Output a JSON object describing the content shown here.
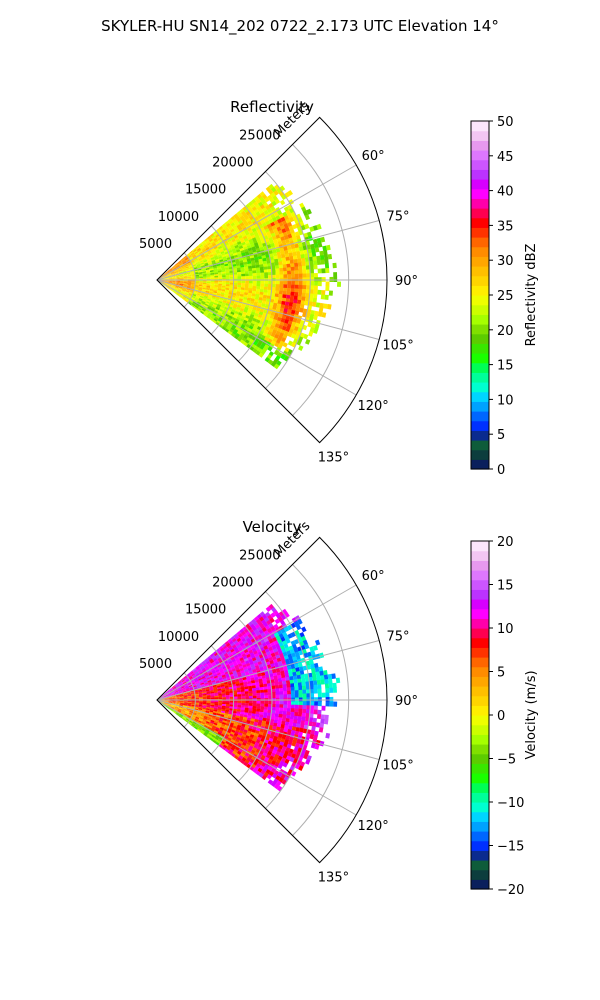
{
  "figure": {
    "title": "SKYLER-HU  SN14_202  0722_2.173 UTC Elevation 14°"
  },
  "chart_data": [
    {
      "type": "heatmap",
      "subtype": "polar-sector",
      "title": "Reflectivity",
      "radial_label": "Meters",
      "radial_ticks": [
        5000,
        10000,
        15000,
        20000,
        25000
      ],
      "radial_tick_labels": [
        "5000",
        "10000",
        "15000",
        "20000",
        "25000"
      ],
      "r_max": 30000,
      "theta_ticks": [
        60,
        75,
        90,
        105,
        120,
        135
      ],
      "theta_tick_labels": [
        "60°",
        "75°",
        "90°",
        "105°",
        "120°",
        "135°"
      ],
      "theta_range": [
        45,
        135
      ],
      "grid": true,
      "colorbar": {
        "label": "Reflectivity dBZ",
        "vmin": 0,
        "vmax": 50,
        "ticks": [
          0,
          5,
          10,
          15,
          20,
          25,
          30,
          35,
          40,
          45,
          50
        ],
        "tick_labels": [
          "0",
          "5",
          "10",
          "15",
          "20",
          "25",
          "30",
          "35",
          "40",
          "45",
          "50"
        ],
        "colors": [
          "#0a1f5c",
          "#0d3d3d",
          "#0f5c3a",
          "#0a2b8f",
          "#0030ff",
          "#0066ff",
          "#00a2ff",
          "#00d5ff",
          "#00ffd0",
          "#00ff9a",
          "#00ff55",
          "#1aff00",
          "#39e600",
          "#5ccc00",
          "#80e000",
          "#a6ff00",
          "#ccff00",
          "#eeff00",
          "#ffee00",
          "#ffd500",
          "#ffbf00",
          "#ffa600",
          "#ff8c00",
          "#ff6600",
          "#ff3300",
          "#ff0000",
          "#ff0050",
          "#ff00aa",
          "#ff00ff",
          "#d600ff",
          "#bb33ff",
          "#cc55ff",
          "#dd77ff",
          "#e699ee",
          "#f2c6f2",
          "#fbe6fb"
        ]
      },
      "data_extent": {
        "r_max_m": 24000,
        "theta_min": 50,
        "theta_max": 126
      },
      "field_description": "mostly 20-30 dBZ, green edge near 20 dBZ, core bands near 35 dBZ"
    },
    {
      "type": "heatmap",
      "subtype": "polar-sector",
      "title": "Velocity",
      "radial_label": "Meters",
      "radial_ticks": [
        5000,
        10000,
        15000,
        20000,
        25000
      ],
      "radial_tick_labels": [
        "5000",
        "10000",
        "15000",
        "20000",
        "25000"
      ],
      "r_max": 30000,
      "theta_ticks": [
        60,
        75,
        90,
        105,
        120,
        135
      ],
      "theta_tick_labels": [
        "60°",
        "75°",
        "90°",
        "105°",
        "120°",
        "135°"
      ],
      "theta_range": [
        45,
        135
      ],
      "grid": true,
      "colorbar": {
        "label": "Velocity (m/s)",
        "vmin": -20,
        "vmax": 20,
        "ticks": [
          -20,
          -15,
          -10,
          -5,
          0,
          5,
          10,
          15,
          20
        ],
        "tick_labels": [
          "−20",
          "−15",
          "−10",
          "−5",
          "0",
          "5",
          "10",
          "15",
          "20"
        ],
        "colors": [
          "#0a1f5c",
          "#0d3d3d",
          "#0f5c3a",
          "#0a2b8f",
          "#0030ff",
          "#0066ff",
          "#00a2ff",
          "#00d5ff",
          "#00ffd0",
          "#00ff9a",
          "#00ff55",
          "#1aff00",
          "#39e600",
          "#5ccc00",
          "#80e000",
          "#a6ff00",
          "#ccff00",
          "#eeff00",
          "#ffee00",
          "#ffd500",
          "#ffbf00",
          "#ffa600",
          "#ff8c00",
          "#ff6600",
          "#ff3300",
          "#ff0000",
          "#ff0050",
          "#ff00aa",
          "#ff00ff",
          "#d600ff",
          "#bb33ff",
          "#cc55ff",
          "#dd77ff",
          "#e699ee",
          "#f2c6f2",
          "#fbe6fb"
        ]
      },
      "data_extent": {
        "r_max_m": 24000,
        "theta_min": 50,
        "theta_max": 126
      },
      "field_description": "inbound about +5 to +15 m/s in core, outbound about -10 to -15 m/s in upper right"
    }
  ]
}
